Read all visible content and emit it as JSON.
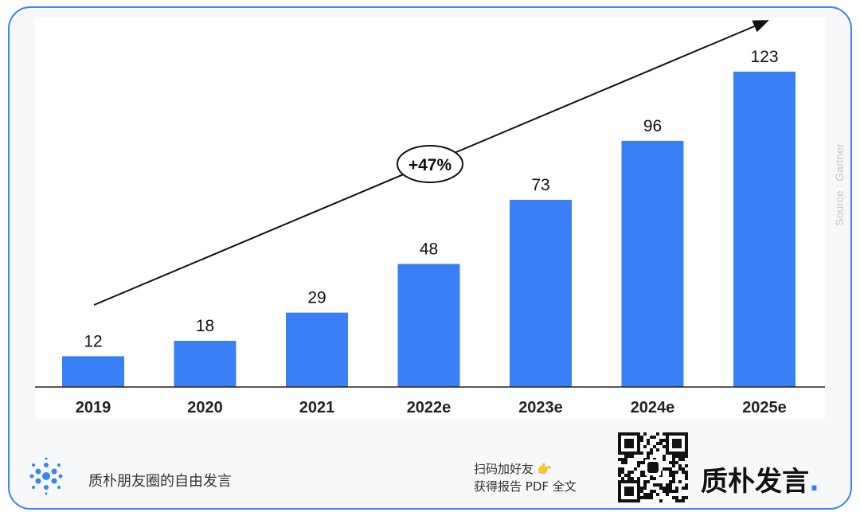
{
  "chart_data": {
    "type": "bar",
    "categories": [
      "2019",
      "2020",
      "2021",
      "2022e",
      "2023e",
      "2024e",
      "2025e"
    ],
    "values": [
      12,
      18,
      29,
      48,
      73,
      96,
      123
    ],
    "title": "",
    "xlabel": "",
    "ylabel": "",
    "ylim": [
      0,
      130
    ],
    "bar_color": "#3a7ff6",
    "annotation": "+47%",
    "grid": false,
    "legend": "none"
  },
  "source": "Source : Gartner",
  "footer": {
    "left_text": "质朴朋友圈的自由发言",
    "cta_line1": "扫码加好友",
    "cta_emoji": "👉",
    "cta_line2": "获得报告 PDF 全文",
    "brand": "质朴发言",
    "brand_dot": ".",
    "accent": "#3a82f7"
  }
}
